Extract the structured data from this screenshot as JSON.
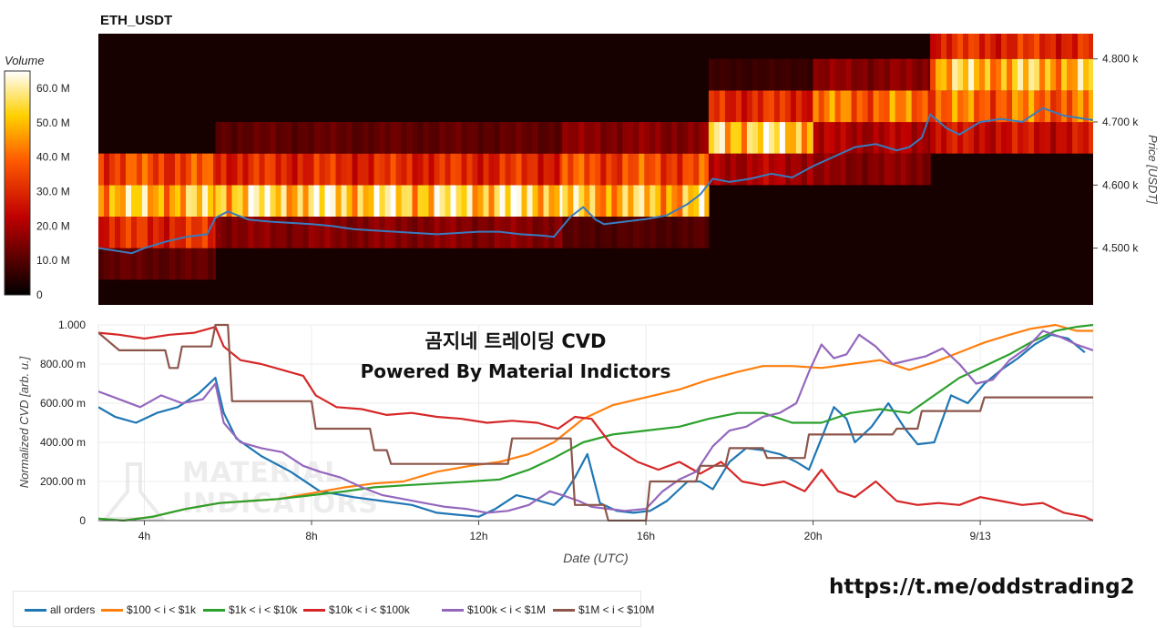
{
  "top_panel": {
    "title": "ETH_USDT",
    "y_axis_label": "Price [USDT]",
    "y_ticks": [
      "4.500 k",
      "4.600 k",
      "4.700 k",
      "4.800 k"
    ],
    "colorbar_title": "Volume",
    "colorbar_ticks": [
      "0",
      "10.0 M",
      "20.0 M",
      "30.0 M",
      "40.0 M",
      "50.0 M",
      "60.0 M"
    ]
  },
  "bottom_panel": {
    "watermark_line1": "곰지네 트레이딩 CVD",
    "watermark_line2": "Powered By Material Indictors",
    "logo_text_line1": "MATERIAL",
    "logo_text_line2": "INDICATORS",
    "y_axis_label": "Normalized CVD [arb. u.]",
    "x_axis_label": "Date (UTC)",
    "y_ticks": [
      "0",
      "200.00 m",
      "400.00 m",
      "600.00 m",
      "800.00 m",
      "1.000"
    ],
    "x_ticks": [
      "4h",
      "8h",
      "12h",
      "16h",
      "20h",
      "9/13"
    ]
  },
  "link": "https://t.me/oddstrading2",
  "colors": {
    "all orders": "#1f77b4",
    "$100 < i < $1k": "#ff7f0e",
    "$1k < i < $10k": "#2ca02c",
    "$10k < i < $100k": "#d62728",
    "$100k < i < $1M": "#9467bd",
    "$1M < i < $10M": "#8c564b",
    "price_line": "#3a7bbf"
  },
  "chart_data": [
    {
      "type": "heatmap",
      "title": "ETH_USDT",
      "xlabel": "",
      "ylabel": "Price [USDT]",
      "x_range_hours": [
        2.9,
        26.7
      ],
      "price_bins": [
        4425,
        4475,
        4525,
        4575,
        4625,
        4675,
        4725,
        4775,
        4825
      ],
      "ylim": [
        4410,
        4840
      ],
      "colorbar": {
        "title": "Volume",
        "range": [
          0,
          65000000
        ]
      },
      "volume_profile": [
        {
          "x": [
            2.9,
            5.7
          ],
          "levels": {
            "4475": 10,
            "4525": 30,
            "4575": 50,
            "4625": 35
          }
        },
        {
          "x": [
            5.7,
            14.0
          ],
          "levels": {
            "4525": 15,
            "4575": 55,
            "4625": 30,
            "4675": 10
          }
        },
        {
          "x": [
            14.0,
            17.5
          ],
          "levels": {
            "4525": 8,
            "4575": 50,
            "4625": 35,
            "4675": 15
          }
        },
        {
          "x": [
            17.5,
            20.0
          ],
          "levels": {
            "4625": 20,
            "4675": 55,
            "4725": 30,
            "4775": 5
          }
        },
        {
          "x": [
            20.0,
            22.8
          ],
          "levels": {
            "4625": 15,
            "4675": 20,
            "4725": 40,
            "4775": 15
          }
        },
        {
          "x": [
            22.8,
            26.7
          ],
          "levels": {
            "4675": 25,
            "4725": 40,
            "4775": 50,
            "4825": 30
          }
        }
      ],
      "series": [
        {
          "name": "ETH_USDT price",
          "x": [
            2.9,
            3.3,
            3.7,
            4.0,
            4.5,
            5.0,
            5.5,
            5.7,
            6.0,
            6.5,
            7.0,
            7.5,
            8.0,
            8.5,
            9.0,
            9.5,
            10.0,
            10.5,
            11.0,
            11.5,
            12.0,
            12.5,
            13.0,
            13.5,
            13.8,
            14.2,
            14.5,
            14.8,
            15.0,
            15.5,
            16.0,
            16.5,
            17.0,
            17.3,
            17.6,
            18.0,
            18.5,
            19.0,
            19.5,
            20.0,
            20.5,
            21.0,
            21.5,
            22.0,
            22.3,
            22.6,
            22.8,
            23.2,
            23.5,
            24.0,
            24.5,
            25.0,
            25.5,
            26.0,
            26.7
          ],
          "y": [
            4500,
            4496,
            4492,
            4500,
            4510,
            4518,
            4522,
            4548,
            4558,
            4545,
            4542,
            4540,
            4538,
            4535,
            4530,
            4528,
            4526,
            4524,
            4522,
            4524,
            4526,
            4526,
            4522,
            4520,
            4518,
            4550,
            4565,
            4545,
            4538,
            4542,
            4546,
            4552,
            4570,
            4585,
            4610,
            4605,
            4610,
            4618,
            4612,
            4630,
            4645,
            4660,
            4665,
            4655,
            4660,
            4675,
            4712,
            4690,
            4680,
            4700,
            4705,
            4700,
            4722,
            4710,
            4703
          ]
        }
      ]
    },
    {
      "type": "line",
      "title": "",
      "xlabel": "Date (UTC)",
      "ylabel": "Normalized CVD [arb. u.]",
      "xlim": [
        2.9,
        26.7
      ],
      "ylim": [
        0,
        1.0
      ],
      "x_tick_hours": [
        4,
        8,
        12,
        16,
        20,
        24
      ],
      "x_tick_labels": [
        "4h",
        "8h",
        "12h",
        "16h",
        "20h",
        "9/13"
      ],
      "legend_placement": "bottom",
      "series": [
        {
          "name": "all orders",
          "x": [
            2.9,
            3.3,
            3.8,
            4.3,
            4.8,
            5.3,
            5.7,
            5.9,
            6.2,
            6.8,
            7.5,
            8.2,
            9.0,
            9.7,
            10.4,
            11.0,
            11.5,
            12.0,
            12.4,
            12.9,
            13.3,
            13.8,
            14.0,
            14.3,
            14.6,
            14.9,
            15.3,
            15.7,
            16.1,
            16.5,
            17.0,
            17.3,
            17.6,
            18.0,
            18.4,
            18.8,
            19.2,
            19.6,
            19.9,
            20.2,
            20.5,
            20.8,
            21.0,
            21.4,
            21.8,
            22.2,
            22.5,
            22.9,
            23.3,
            23.7,
            24.1,
            24.5,
            24.9,
            25.3,
            25.7,
            26.1,
            26.5
          ],
          "y": [
            0.58,
            0.53,
            0.5,
            0.55,
            0.58,
            0.65,
            0.73,
            0.55,
            0.42,
            0.33,
            0.25,
            0.15,
            0.12,
            0.1,
            0.08,
            0.04,
            0.03,
            0.02,
            0.06,
            0.13,
            0.11,
            0.08,
            0.12,
            0.22,
            0.34,
            0.09,
            0.05,
            0.04,
            0.05,
            0.1,
            0.2,
            0.2,
            0.16,
            0.3,
            0.37,
            0.36,
            0.34,
            0.3,
            0.26,
            0.42,
            0.58,
            0.52,
            0.4,
            0.48,
            0.6,
            0.47,
            0.39,
            0.4,
            0.64,
            0.6,
            0.7,
            0.77,
            0.83,
            0.9,
            0.95,
            0.93,
            0.86
          ]
        },
        {
          "name": "$100 < i < $1k",
          "x": [
            2.9,
            3.5,
            4.2,
            5.0,
            5.8,
            6.5,
            7.2,
            8.0,
            8.8,
            9.5,
            10.2,
            11.0,
            11.8,
            12.5,
            13.2,
            13.8,
            14.5,
            15.2,
            16.0,
            16.8,
            17.5,
            18.2,
            18.8,
            19.5,
            20.2,
            20.9,
            21.6,
            22.3,
            22.9,
            23.5,
            24.1,
            24.7,
            25.2,
            25.8,
            26.3,
            26.7
          ],
          "y": [
            0.01,
            0.0,
            0.02,
            0.06,
            0.09,
            0.1,
            0.11,
            0.14,
            0.17,
            0.19,
            0.2,
            0.25,
            0.28,
            0.3,
            0.34,
            0.4,
            0.52,
            0.59,
            0.63,
            0.67,
            0.72,
            0.76,
            0.79,
            0.79,
            0.78,
            0.8,
            0.82,
            0.77,
            0.81,
            0.86,
            0.91,
            0.95,
            0.98,
            1.0,
            0.97,
            0.97
          ]
        },
        {
          "name": "$1k < i < $10k",
          "x": [
            2.9,
            3.5,
            4.2,
            5.0,
            5.8,
            6.5,
            7.2,
            8.0,
            8.8,
            9.5,
            10.2,
            11.0,
            11.8,
            12.5,
            13.2,
            13.8,
            14.5,
            15.2,
            16.0,
            16.8,
            17.5,
            18.2,
            18.8,
            19.5,
            20.2,
            20.9,
            21.6,
            22.3,
            22.9,
            23.5,
            24.1,
            24.7,
            25.2,
            25.8,
            26.3,
            26.7
          ],
          "y": [
            0.01,
            0.0,
            0.02,
            0.06,
            0.09,
            0.1,
            0.11,
            0.13,
            0.15,
            0.17,
            0.18,
            0.19,
            0.2,
            0.21,
            0.26,
            0.32,
            0.4,
            0.44,
            0.46,
            0.48,
            0.52,
            0.55,
            0.55,
            0.5,
            0.5,
            0.55,
            0.57,
            0.55,
            0.64,
            0.73,
            0.79,
            0.85,
            0.91,
            0.97,
            0.99,
            1.0
          ]
        },
        {
          "name": "$10k < i < $100k",
          "x": [
            2.9,
            3.4,
            4.0,
            4.6,
            5.2,
            5.7,
            5.9,
            6.3,
            6.8,
            7.3,
            7.8,
            8.1,
            8.6,
            9.2,
            9.8,
            10.4,
            11.0,
            11.6,
            12.2,
            12.8,
            13.4,
            13.9,
            14.3,
            14.7,
            15.2,
            15.8,
            16.3,
            16.8,
            17.3,
            17.8,
            18.3,
            18.8,
            19.3,
            19.8,
            20.2,
            20.6,
            21.0,
            21.5,
            22.0,
            22.5,
            23.0,
            23.5,
            24.0,
            24.5,
            25.0,
            25.5,
            26.0,
            26.5,
            26.7
          ],
          "y": [
            0.96,
            0.95,
            0.93,
            0.95,
            0.96,
            0.99,
            0.89,
            0.82,
            0.8,
            0.77,
            0.74,
            0.64,
            0.58,
            0.57,
            0.54,
            0.55,
            0.53,
            0.52,
            0.5,
            0.51,
            0.5,
            0.47,
            0.53,
            0.52,
            0.38,
            0.3,
            0.26,
            0.3,
            0.24,
            0.3,
            0.2,
            0.18,
            0.2,
            0.15,
            0.26,
            0.15,
            0.12,
            0.2,
            0.1,
            0.08,
            0.09,
            0.08,
            0.12,
            0.1,
            0.08,
            0.09,
            0.04,
            0.02,
            0.0
          ]
        },
        {
          "name": "$100k < i < $1M",
          "x": [
            2.9,
            3.4,
            3.9,
            4.4,
            4.9,
            5.4,
            5.7,
            5.9,
            6.3,
            6.8,
            7.3,
            7.8,
            8.2,
            8.7,
            9.2,
            9.7,
            10.2,
            10.7,
            11.2,
            11.7,
            12.2,
            12.7,
            13.2,
            13.7,
            14.0,
            14.4,
            14.7,
            15.1,
            15.5,
            16.0,
            16.4,
            16.8,
            17.2,
            17.6,
            18.0,
            18.4,
            18.8,
            19.2,
            19.6,
            19.9,
            20.2,
            20.5,
            20.8,
            21.1,
            21.5,
            21.9,
            22.3,
            22.7,
            23.1,
            23.5,
            23.9,
            24.3,
            24.7,
            25.1,
            25.5,
            25.9,
            26.3,
            26.7
          ],
          "y": [
            0.66,
            0.62,
            0.58,
            0.64,
            0.6,
            0.62,
            0.7,
            0.5,
            0.4,
            0.37,
            0.35,
            0.28,
            0.25,
            0.22,
            0.17,
            0.13,
            0.11,
            0.09,
            0.07,
            0.06,
            0.04,
            0.05,
            0.08,
            0.15,
            0.13,
            0.1,
            0.07,
            0.06,
            0.05,
            0.06,
            0.15,
            0.21,
            0.25,
            0.38,
            0.46,
            0.48,
            0.53,
            0.55,
            0.6,
            0.76,
            0.9,
            0.83,
            0.85,
            0.95,
            0.89,
            0.8,
            0.82,
            0.84,
            0.88,
            0.8,
            0.7,
            0.72,
            0.82,
            0.88,
            0.97,
            0.94,
            0.9,
            0.87
          ]
        },
        {
          "name": "$1M < i < $10M",
          "x": [
            2.9,
            3.4,
            4.5,
            4.6,
            4.8,
            4.9,
            5.6,
            5.7,
            6.0,
            6.1,
            8.0,
            8.1,
            9.4,
            9.5,
            9.8,
            9.9,
            12.7,
            12.8,
            14.2,
            14.3,
            15.0,
            15.1,
            16.0,
            16.1,
            17.2,
            17.3,
            17.9,
            18.0,
            18.8,
            18.9,
            19.8,
            19.9,
            21.9,
            22.0,
            22.5,
            22.6,
            24.0,
            24.1,
            26.7
          ],
          "y": [
            0.96,
            0.87,
            0.87,
            0.78,
            0.78,
            0.89,
            0.89,
            1.0,
            1.0,
            0.61,
            0.61,
            0.47,
            0.47,
            0.36,
            0.36,
            0.29,
            0.29,
            0.42,
            0.42,
            0.08,
            0.08,
            0.0,
            0.0,
            0.2,
            0.2,
            0.28,
            0.28,
            0.37,
            0.37,
            0.32,
            0.32,
            0.44,
            0.44,
            0.47,
            0.47,
            0.56,
            0.56,
            0.63,
            0.63
          ]
        }
      ]
    }
  ]
}
